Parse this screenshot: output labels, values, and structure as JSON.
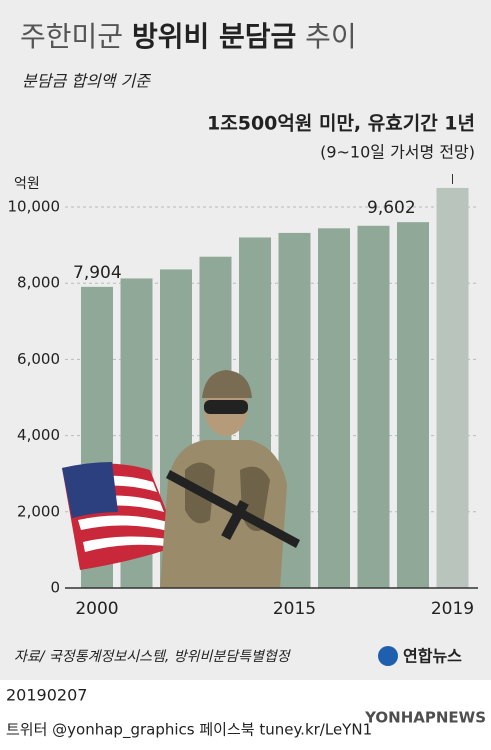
{
  "chart_data": {
    "type": "bar",
    "title": {
      "prefix": "주한미군",
      "emphasis": "방위비 분담금",
      "suffix": "추이"
    },
    "subtitle": "분담금 합의액 기준",
    "y_axis_label": "억원",
    "annotation": {
      "main": "1조500억원 미만, 유효기간 1년",
      "note": "(9~10일 가서명 전망)"
    },
    "categories": [
      "2000",
      null,
      null,
      null,
      null,
      "2015",
      null,
      null,
      null,
      "2019"
    ],
    "values": [
      7904,
      8125,
      8361,
      8695,
      9200,
      9320,
      9441,
      9507,
      9602,
      10500
    ],
    "value_labels": [
      "7,904",
      null,
      null,
      null,
      null,
      null,
      null,
      null,
      "9,602",
      null
    ],
    "color": "#8fa898",
    "highlight_color": "#b9c5bc",
    "ylim": [
      0,
      10000
    ],
    "yticks": [
      0,
      {
        "value": 2000,
        "label": "2,000"
      },
      {
        "value": 4000,
        "label": "4,000"
      },
      {
        "value": 6000,
        "label": "6,000"
      },
      {
        "value": 8000,
        "label": "8,000"
      },
      {
        "value": 10000,
        "label": "10,000"
      }
    ],
    "grid": true,
    "source": "자료/ 국정통계정보시스템, 방위비분담특별협정",
    "logo": "연합뉴스",
    "date": "20190207",
    "footer": "트위터 @yonhap_graphics  페이스북 tuney.kr/LeYN1",
    "watermark": "YONHAPNEWS"
  }
}
